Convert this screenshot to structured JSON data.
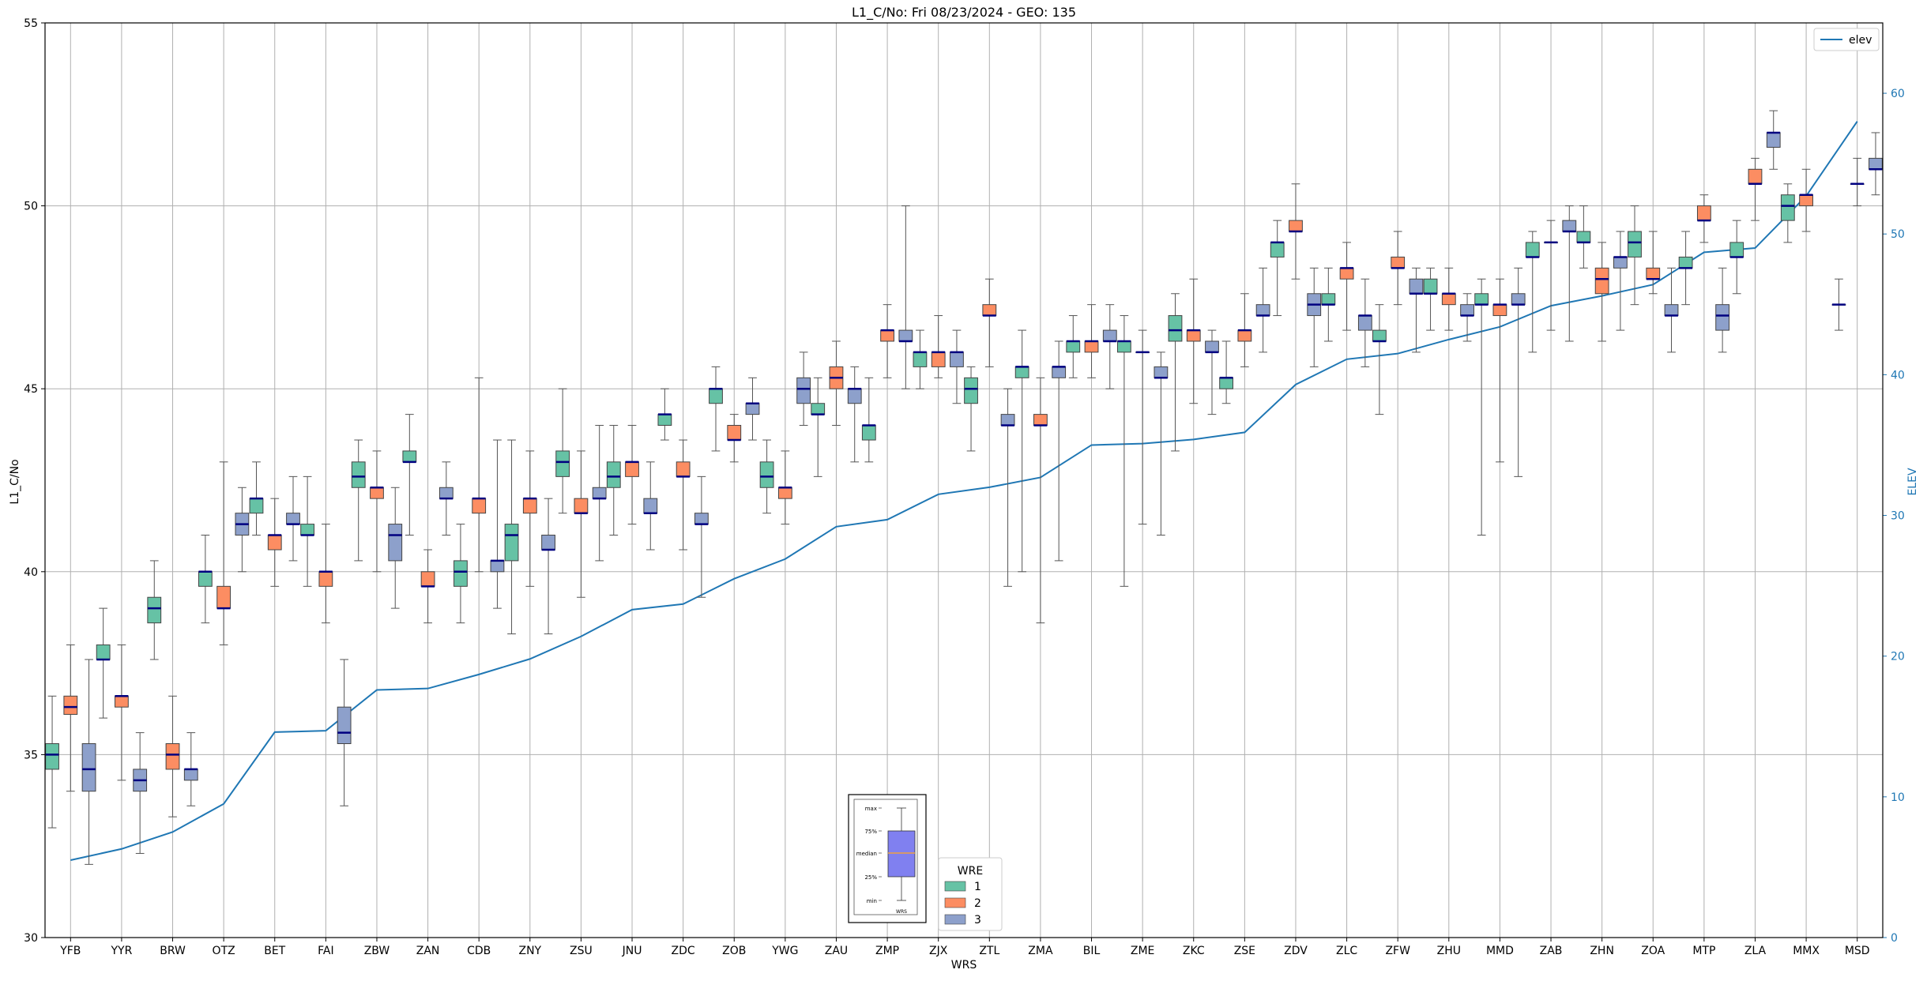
{
  "chart_data": {
    "type": "box",
    "title": "L1_C/No: Fri 08/23/2024 - GEO: 135",
    "xlabel": "WRS",
    "ylabel": "L1_C/No",
    "y2label": "ELEV",
    "ylim": [
      30,
      55
    ],
    "y2lim": [
      0,
      65
    ],
    "yticks": [
      30,
      35,
      40,
      45,
      50,
      55
    ],
    "y2ticks": [
      0,
      10,
      20,
      30,
      40,
      50,
      60
    ],
    "grid": true,
    "categories": [
      "YFB",
      "YYR",
      "BRW",
      "OTZ",
      "BET",
      "FAI",
      "ZBW",
      "ZAN",
      "CDB",
      "ZNY",
      "ZSU",
      "JNU",
      "ZDC",
      "ZOB",
      "YWG",
      "ZAU",
      "ZMP",
      "ZJX",
      "ZTL",
      "ZMA",
      "BIL",
      "ZME",
      "ZKC",
      "ZSE",
      "ZDV",
      "ZLC",
      "ZFW",
      "ZHU",
      "MMD",
      "ZAB",
      "ZHN",
      "ZOA",
      "MTP",
      "ZLA",
      "MMX",
      "MSD"
    ],
    "legend": {
      "title": "WRE",
      "entries": [
        {
          "name": "1",
          "color": "#66c2a5"
        },
        {
          "name": "2",
          "color": "#fc8d62"
        },
        {
          "name": "3",
          "color": "#8da0cb"
        }
      ]
    },
    "elev_legend": {
      "name": "elev",
      "color": "#1f77b4",
      "position": "top-right"
    },
    "elev": [
      5.5,
      6.3,
      7.5,
      9.5,
      14.6,
      14.7,
      17.6,
      17.7,
      18.7,
      19.8,
      21.4,
      23.3,
      23.7,
      25.5,
      26.9,
      29.2,
      29.7,
      31.5,
      32.0,
      32.7,
      35.0,
      35.1,
      35.4,
      35.9,
      39.3,
      41.1,
      41.5,
      42.5,
      43.4,
      44.9,
      45.6,
      46.4,
      48.7,
      49.0,
      52.7,
      58.0
    ],
    "boxes": [
      {
        "station": "YFB",
        "wre": 1,
        "min": 33.0,
        "q1": 34.6,
        "median": 35.0,
        "q3": 35.3,
        "max": 36.6
      },
      {
        "station": "YFB",
        "wre": 2,
        "min": 34.0,
        "q1": 36.1,
        "median": 36.3,
        "q3": 36.6,
        "max": 38.0
      },
      {
        "station": "YFB",
        "wre": 3,
        "min": 32.0,
        "q1": 34.0,
        "median": 34.6,
        "q3": 35.3,
        "max": 37.6
      },
      {
        "station": "YYR",
        "wre": 1,
        "min": 36.0,
        "q1": 37.6,
        "median": 37.6,
        "q3": 38.0,
        "max": 39.0
      },
      {
        "station": "YYR",
        "wre": 2,
        "min": 34.3,
        "q1": 36.3,
        "median": 36.6,
        "q3": 36.6,
        "max": 38.0
      },
      {
        "station": "YYR",
        "wre": 3,
        "min": 32.3,
        "q1": 34.0,
        "median": 34.3,
        "q3": 34.6,
        "max": 35.6
      },
      {
        "station": "BRW",
        "wre": 1,
        "min": 37.6,
        "q1": 38.6,
        "median": 39.0,
        "q3": 39.3,
        "max": 40.3
      },
      {
        "station": "BRW",
        "wre": 2,
        "min": 33.3,
        "q1": 34.6,
        "median": 35.0,
        "q3": 35.3,
        "max": 36.6
      },
      {
        "station": "BRW",
        "wre": 3,
        "min": 33.6,
        "q1": 34.3,
        "median": 34.6,
        "q3": 34.6,
        "max": 35.6
      },
      {
        "station": "OTZ",
        "wre": 1,
        "min": 38.6,
        "q1": 39.6,
        "median": 40.0,
        "q3": 40.0,
        "max": 41.0
      },
      {
        "station": "OTZ",
        "wre": 2,
        "min": 38.0,
        "q1": 39.0,
        "median": 39.0,
        "q3": 39.6,
        "max": 43.0
      },
      {
        "station": "OTZ",
        "wre": 3,
        "min": 40.0,
        "q1": 41.0,
        "median": 41.3,
        "q3": 41.6,
        "max": 42.3
      },
      {
        "station": "BET",
        "wre": 1,
        "min": 41.0,
        "q1": 41.6,
        "median": 42.0,
        "q3": 42.0,
        "max": 43.0
      },
      {
        "station": "BET",
        "wre": 2,
        "min": 39.6,
        "q1": 40.6,
        "median": 41.0,
        "q3": 41.0,
        "max": 42.0
      },
      {
        "station": "BET",
        "wre": 3,
        "min": 40.3,
        "q1": 41.3,
        "median": 41.3,
        "q3": 41.6,
        "max": 42.6
      },
      {
        "station": "FAI",
        "wre": 1,
        "min": 39.6,
        "q1": 41.0,
        "median": 41.0,
        "q3": 41.3,
        "max": 42.6
      },
      {
        "station": "FAI",
        "wre": 2,
        "min": 38.6,
        "q1": 39.6,
        "median": 40.0,
        "q3": 40.0,
        "max": 41.3
      },
      {
        "station": "FAI",
        "wre": 3,
        "min": 33.6,
        "q1": 35.3,
        "median": 35.6,
        "q3": 36.3,
        "max": 37.6
      },
      {
        "station": "ZBW",
        "wre": 1,
        "min": 40.3,
        "q1": 42.3,
        "median": 42.6,
        "q3": 43.0,
        "max": 43.6
      },
      {
        "station": "ZBW",
        "wre": 2,
        "min": 40.0,
        "q1": 42.0,
        "median": 42.3,
        "q3": 42.3,
        "max": 43.3
      },
      {
        "station": "ZBW",
        "wre": 3,
        "min": 39.0,
        "q1": 40.3,
        "median": 41.0,
        "q3": 41.3,
        "max": 42.3
      },
      {
        "station": "ZAN",
        "wre": 1,
        "min": 41.0,
        "q1": 43.0,
        "median": 43.0,
        "q3": 43.3,
        "max": 44.3
      },
      {
        "station": "ZAN",
        "wre": 2,
        "min": 38.6,
        "q1": 39.6,
        "median": 39.6,
        "q3": 40.0,
        "max": 40.6
      },
      {
        "station": "ZAN",
        "wre": 3,
        "min": 41.0,
        "q1": 42.0,
        "median": 42.0,
        "q3": 42.3,
        "max": 43.0
      },
      {
        "station": "CDB",
        "wre": 1,
        "min": 38.6,
        "q1": 39.6,
        "median": 40.0,
        "q3": 40.3,
        "max": 41.3
      },
      {
        "station": "CDB",
        "wre": 2,
        "min": 40.0,
        "q1": 41.6,
        "median": 42.0,
        "q3": 42.0,
        "max": 45.3
      },
      {
        "station": "CDB",
        "wre": 3,
        "min": 39.0,
        "q1": 40.0,
        "median": 40.3,
        "q3": 40.3,
        "max": 43.6
      },
      {
        "station": "ZNY",
        "wre": 1,
        "min": 38.3,
        "q1": 40.3,
        "median": 41.0,
        "q3": 41.3,
        "max": 43.6
      },
      {
        "station": "ZNY",
        "wre": 2,
        "min": 39.6,
        "q1": 41.6,
        "median": 42.0,
        "q3": 42.0,
        "max": 43.3
      },
      {
        "station": "ZNY",
        "wre": 3,
        "min": 38.3,
        "q1": 40.6,
        "median": 40.6,
        "q3": 41.0,
        "max": 42.0
      },
      {
        "station": "ZSU",
        "wre": 1,
        "min": 41.6,
        "q1": 42.6,
        "median": 43.0,
        "q3": 43.3,
        "max": 45.0
      },
      {
        "station": "ZSU",
        "wre": 2,
        "min": 39.3,
        "q1": 41.6,
        "median": 41.6,
        "q3": 42.0,
        "max": 43.3
      },
      {
        "station": "ZSU",
        "wre": 3,
        "min": 40.3,
        "q1": 42.0,
        "median": 42.0,
        "q3": 42.3,
        "max": 44.0
      },
      {
        "station": "JNU",
        "wre": 1,
        "min": 41.0,
        "q1": 42.3,
        "median": 42.6,
        "q3": 43.0,
        "max": 44.0
      },
      {
        "station": "JNU",
        "wre": 2,
        "min": 41.3,
        "q1": 42.6,
        "median": 43.0,
        "q3": 43.0,
        "max": 44.0
      },
      {
        "station": "JNU",
        "wre": 3,
        "min": 40.6,
        "q1": 41.6,
        "median": 41.6,
        "q3": 42.0,
        "max": 43.0
      },
      {
        "station": "ZDC",
        "wre": 1,
        "min": 43.6,
        "q1": 44.0,
        "median": 44.3,
        "q3": 44.3,
        "max": 45.0
      },
      {
        "station": "ZDC",
        "wre": 2,
        "min": 40.6,
        "q1": 42.6,
        "median": 42.6,
        "q3": 43.0,
        "max": 43.6
      },
      {
        "station": "ZDC",
        "wre": 3,
        "min": 39.3,
        "q1": 41.3,
        "median": 41.3,
        "q3": 41.6,
        "max": 42.6
      },
      {
        "station": "ZOB",
        "wre": 1,
        "min": 43.3,
        "q1": 44.6,
        "median": 45.0,
        "q3": 45.0,
        "max": 45.6
      },
      {
        "station": "ZOB",
        "wre": 2,
        "min": 43.0,
        "q1": 43.6,
        "median": 43.6,
        "q3": 44.0,
        "max": 44.3
      },
      {
        "station": "ZOB",
        "wre": 3,
        "min": 43.6,
        "q1": 44.3,
        "median": 44.6,
        "q3": 44.6,
        "max": 45.3
      },
      {
        "station": "YWG",
        "wre": 1,
        "min": 41.6,
        "q1": 42.3,
        "median": 42.6,
        "q3": 43.0,
        "max": 43.6
      },
      {
        "station": "YWG",
        "wre": 2,
        "min": 41.3,
        "q1": 42.0,
        "median": 42.3,
        "q3": 42.3,
        "max": 43.3
      },
      {
        "station": "YWG",
        "wre": 3,
        "min": 44.0,
        "q1": 44.6,
        "median": 45.0,
        "q3": 45.3,
        "max": 46.0
      },
      {
        "station": "ZAU",
        "wre": 1,
        "min": 42.6,
        "q1": 44.3,
        "median": 44.3,
        "q3": 44.6,
        "max": 45.3
      },
      {
        "station": "ZAU",
        "wre": 2,
        "min": 44.0,
        "q1": 45.0,
        "median": 45.3,
        "q3": 45.6,
        "max": 46.3
      },
      {
        "station": "ZAU",
        "wre": 3,
        "min": 43.0,
        "q1": 44.6,
        "median": 45.0,
        "q3": 45.0,
        "max": 45.6
      },
      {
        "station": "ZMP",
        "wre": 1,
        "min": 43.0,
        "q1": 43.6,
        "median": 44.0,
        "q3": 44.0,
        "max": 45.3
      },
      {
        "station": "ZMP",
        "wre": 2,
        "min": 45.3,
        "q1": 46.3,
        "median": 46.6,
        "q3": 46.6,
        "max": 47.3
      },
      {
        "station": "ZMP",
        "wre": 3,
        "min": 45.0,
        "q1": 46.3,
        "median": 46.3,
        "q3": 46.6,
        "max": 50.0
      },
      {
        "station": "ZJX",
        "wre": 1,
        "min": 45.0,
        "q1": 45.6,
        "median": 46.0,
        "q3": 46.0,
        "max": 46.6
      },
      {
        "station": "ZJX",
        "wre": 2,
        "min": 45.3,
        "q1": 45.6,
        "median": 46.0,
        "q3": 46.0,
        "max": 47.0
      },
      {
        "station": "ZJX",
        "wre": 3,
        "min": 44.6,
        "q1": 45.6,
        "median": 46.0,
        "q3": 46.0,
        "max": 46.6
      },
      {
        "station": "ZTL",
        "wre": 1,
        "min": 43.3,
        "q1": 44.6,
        "median": 45.0,
        "q3": 45.3,
        "max": 45.6
      },
      {
        "station": "ZTL",
        "wre": 2,
        "min": 45.6,
        "q1": 47.0,
        "median": 47.0,
        "q3": 47.3,
        "max": 48.0
      },
      {
        "station": "ZTL",
        "wre": 3,
        "min": 39.6,
        "q1": 44.0,
        "median": 44.0,
        "q3": 44.3,
        "max": 45.0
      },
      {
        "station": "ZMA",
        "wre": 1,
        "min": 40.0,
        "q1": 45.3,
        "median": 45.6,
        "q3": 45.6,
        "max": 46.6
      },
      {
        "station": "ZMA",
        "wre": 2,
        "min": 38.6,
        "q1": 44.0,
        "median": 44.0,
        "q3": 44.3,
        "max": 45.3
      },
      {
        "station": "ZMA",
        "wre": 3,
        "min": 40.3,
        "q1": 45.3,
        "median": 45.6,
        "q3": 45.6,
        "max": 46.3
      },
      {
        "station": "BIL",
        "wre": 1,
        "min": 45.3,
        "q1": 46.0,
        "median": 46.3,
        "q3": 46.3,
        "max": 47.0
      },
      {
        "station": "BIL",
        "wre": 2,
        "min": 45.3,
        "q1": 46.0,
        "median": 46.3,
        "q3": 46.3,
        "max": 47.3
      },
      {
        "station": "BIL",
        "wre": 3,
        "min": 45.0,
        "q1": 46.3,
        "median": 46.3,
        "q3": 46.6,
        "max": 47.3
      },
      {
        "station": "ZME",
        "wre": 1,
        "min": 39.6,
        "q1": 46.0,
        "median": 46.3,
        "q3": 46.3,
        "max": 47.0
      },
      {
        "station": "ZME",
        "wre": 2,
        "min": 41.3,
        "q1": 46.0,
        "median": 46.0,
        "q3": 46.0,
        "max": 46.6
      },
      {
        "station": "ZME",
        "wre": 3,
        "min": 41.0,
        "q1": 45.3,
        "median": 45.3,
        "q3": 45.6,
        "max": 46.0
      },
      {
        "station": "ZKC",
        "wre": 1,
        "min": 43.3,
        "q1": 46.3,
        "median": 46.6,
        "q3": 47.0,
        "max": 47.6
      },
      {
        "station": "ZKC",
        "wre": 2,
        "min": 44.6,
        "q1": 46.3,
        "median": 46.6,
        "q3": 46.6,
        "max": 48.0
      },
      {
        "station": "ZKC",
        "wre": 3,
        "min": 44.3,
        "q1": 46.0,
        "median": 46.0,
        "q3": 46.3,
        "max": 46.6
      },
      {
        "station": "ZSE",
        "wre": 1,
        "min": 44.6,
        "q1": 45.0,
        "median": 45.3,
        "q3": 45.3,
        "max": 46.3
      },
      {
        "station": "ZSE",
        "wre": 2,
        "min": 45.6,
        "q1": 46.3,
        "median": 46.6,
        "q3": 46.6,
        "max": 47.6
      },
      {
        "station": "ZSE",
        "wre": 3,
        "min": 46.0,
        "q1": 47.0,
        "median": 47.0,
        "q3": 47.3,
        "max": 48.3
      },
      {
        "station": "ZDV",
        "wre": 1,
        "min": 47.0,
        "q1": 48.6,
        "median": 49.0,
        "q3": 49.0,
        "max": 49.6
      },
      {
        "station": "ZDV",
        "wre": 2,
        "min": 48.0,
        "q1": 49.3,
        "median": 49.3,
        "q3": 49.6,
        "max": 50.6
      },
      {
        "station": "ZDV",
        "wre": 3,
        "min": 45.6,
        "q1": 47.0,
        "median": 47.3,
        "q3": 47.6,
        "max": 48.3
      },
      {
        "station": "ZLC",
        "wre": 1,
        "min": 46.3,
        "q1": 47.3,
        "median": 47.3,
        "q3": 47.6,
        "max": 48.3
      },
      {
        "station": "ZLC",
        "wre": 2,
        "min": 46.6,
        "q1": 48.0,
        "median": 48.3,
        "q3": 48.3,
        "max": 49.0
      },
      {
        "station": "ZLC",
        "wre": 3,
        "min": 45.6,
        "q1": 46.6,
        "median": 47.0,
        "q3": 47.0,
        "max": 48.0
      },
      {
        "station": "ZFW",
        "wre": 1,
        "min": 44.3,
        "q1": 46.3,
        "median": 46.3,
        "q3": 46.6,
        "max": 47.3
      },
      {
        "station": "ZFW",
        "wre": 2,
        "min": 47.3,
        "q1": 48.3,
        "median": 48.3,
        "q3": 48.6,
        "max": 49.3
      },
      {
        "station": "ZFW",
        "wre": 3,
        "min": 46.0,
        "q1": 47.6,
        "median": 47.6,
        "q3": 48.0,
        "max": 48.3
      },
      {
        "station": "ZHU",
        "wre": 1,
        "min": 46.6,
        "q1": 47.6,
        "median": 47.6,
        "q3": 48.0,
        "max": 48.3
      },
      {
        "station": "ZHU",
        "wre": 2,
        "min": 46.6,
        "q1": 47.3,
        "median": 47.6,
        "q3": 47.6,
        "max": 48.3
      },
      {
        "station": "ZHU",
        "wre": 3,
        "min": 46.3,
        "q1": 47.0,
        "median": 47.0,
        "q3": 47.3,
        "max": 47.6
      },
      {
        "station": "MMD",
        "wre": 1,
        "min": 41.0,
        "q1": 47.3,
        "median": 47.3,
        "q3": 47.6,
        "max": 48.0
      },
      {
        "station": "MMD",
        "wre": 2,
        "min": 43.0,
        "q1": 47.0,
        "median": 47.3,
        "q3": 47.3,
        "max": 48.0
      },
      {
        "station": "MMD",
        "wre": 3,
        "min": 42.6,
        "q1": 47.3,
        "median": 47.3,
        "q3": 47.6,
        "max": 48.3
      },
      {
        "station": "ZAB",
        "wre": 1,
        "min": 46.0,
        "q1": 48.6,
        "median": 48.6,
        "q3": 49.0,
        "max": 49.3
      },
      {
        "station": "ZAB",
        "wre": 2,
        "min": 46.6,
        "q1": 49.0,
        "median": 49.0,
        "q3": 49.0,
        "max": 49.6
      },
      {
        "station": "ZAB",
        "wre": 3,
        "min": 46.3,
        "q1": 49.3,
        "median": 49.3,
        "q3": 49.6,
        "max": 50.0
      },
      {
        "station": "ZHN",
        "wre": 1,
        "min": 48.3,
        "q1": 49.0,
        "median": 49.0,
        "q3": 49.3,
        "max": 50.0
      },
      {
        "station": "ZHN",
        "wre": 2,
        "min": 46.3,
        "q1": 47.6,
        "median": 48.0,
        "q3": 48.3,
        "max": 49.0
      },
      {
        "station": "ZHN",
        "wre": 3,
        "min": 46.6,
        "q1": 48.3,
        "median": 48.6,
        "q3": 48.6,
        "max": 49.3
      },
      {
        "station": "ZOA",
        "wre": 1,
        "min": 47.3,
        "q1": 48.6,
        "median": 49.0,
        "q3": 49.3,
        "max": 50.0
      },
      {
        "station": "ZOA",
        "wre": 2,
        "min": 47.6,
        "q1": 48.0,
        "median": 48.0,
        "q3": 48.3,
        "max": 49.3
      },
      {
        "station": "ZOA",
        "wre": 3,
        "min": 46.0,
        "q1": 47.0,
        "median": 47.0,
        "q3": 47.3,
        "max": 48.3
      },
      {
        "station": "MTP",
        "wre": 1,
        "min": 47.3,
        "q1": 48.3,
        "median": 48.3,
        "q3": 48.6,
        "max": 49.3
      },
      {
        "station": "MTP",
        "wre": 2,
        "min": 49.0,
        "q1": 49.6,
        "median": 49.6,
        "q3": 50.0,
        "max": 50.3
      },
      {
        "station": "MTP",
        "wre": 3,
        "min": 46.0,
        "q1": 46.6,
        "median": 47.0,
        "q3": 47.3,
        "max": 48.3
      },
      {
        "station": "ZLA",
        "wre": 1,
        "min": 47.6,
        "q1": 48.6,
        "median": 48.6,
        "q3": 49.0,
        "max": 49.6
      },
      {
        "station": "ZLA",
        "wre": 2,
        "min": 49.6,
        "q1": 50.6,
        "median": 50.6,
        "q3": 51.0,
        "max": 51.3
      },
      {
        "station": "ZLA",
        "wre": 3,
        "min": 51.0,
        "q1": 51.6,
        "median": 52.0,
        "q3": 52.0,
        "max": 52.6
      },
      {
        "station": "MMX",
        "wre": 1,
        "min": 49.0,
        "q1": 49.6,
        "median": 50.0,
        "q3": 50.3,
        "max": 50.6
      },
      {
        "station": "MMX",
        "wre": 2,
        "min": 49.3,
        "q1": 50.0,
        "median": 50.3,
        "q3": 50.3,
        "max": 51.0
      },
      {
        "station": "MSD",
        "wre": 1,
        "min": 46.6,
        "q1": 47.3,
        "median": 47.3,
        "q3": 47.3,
        "max": 48.0
      },
      {
        "station": "MSD",
        "wre": 2,
        "min": 50.0,
        "q1": 50.6,
        "median": 50.6,
        "q3": 50.6,
        "max": 51.3
      },
      {
        "station": "MSD",
        "wre": 3,
        "min": 50.3,
        "q1": 51.0,
        "median": 51.0,
        "q3": 51.3,
        "max": 52.0
      }
    ],
    "inset_legend": {
      "labels": [
        "max",
        "75%",
        "median",
        "25%",
        "min"
      ],
      "xlabel": "WRS"
    }
  },
  "colors": {
    "wre1": "#66c2a5",
    "wre2": "#fc8d62",
    "wre3": "#8da0cb",
    "median": "#000080",
    "elev": "#1f77b4",
    "whisker": "#555555",
    "grid": "#b0b0b0",
    "inset_box": "#8080f0",
    "inset_median": "#f0a040"
  }
}
